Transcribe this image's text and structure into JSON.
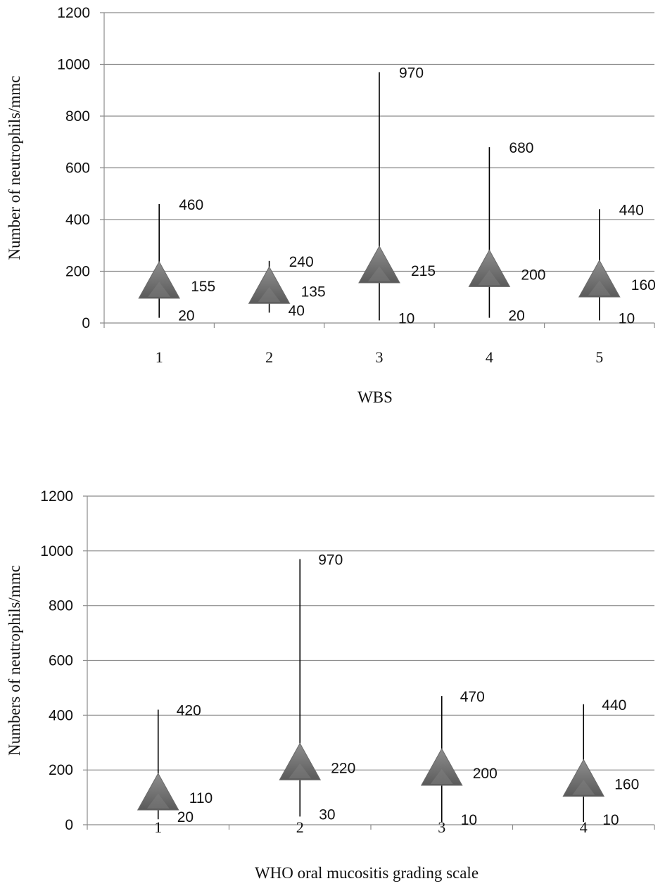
{
  "chart_data": [
    {
      "type": "stock",
      "xlabel": "WBS",
      "ylabel": "Number of neutrophils/mmc",
      "ylim": [
        0,
        1200
      ],
      "yticks": [
        0,
        200,
        400,
        600,
        800,
        1000,
        1200
      ],
      "ytick_labels": [
        "0",
        "200",
        "400",
        "600",
        "800",
        "1000",
        "1200"
      ],
      "grid": true,
      "categories": [
        "1",
        "2",
        "3",
        "4",
        "5"
      ],
      "series": [
        {
          "max": [
            460,
            240,
            970,
            680,
            440
          ],
          "median": [
            155,
            135,
            215,
            200,
            160
          ],
          "min": [
            20,
            40,
            10,
            20,
            10
          ]
        }
      ],
      "data_labels": {
        "max": [
          "460",
          "240",
          "970",
          "680",
          "440"
        ],
        "median": [
          "155",
          "135",
          "215",
          "200",
          "160"
        ],
        "min": [
          "20",
          "40",
          "10",
          "20",
          "10"
        ]
      },
      "marker": "triangle",
      "marker_color": "#7a7a7a"
    },
    {
      "type": "stock",
      "xlabel": "WHO oral mucositis grading scale",
      "ylabel": "Numbers of neutrophils/mmc",
      "ylim": [
        0,
        1200
      ],
      "yticks": [
        0,
        200,
        400,
        600,
        800,
        1000,
        1200
      ],
      "ytick_labels": [
        "0",
        "200",
        "400",
        "600",
        "800",
        "1000",
        "1200"
      ],
      "grid": true,
      "categories": [
        "1",
        "2",
        "3",
        "4"
      ],
      "series": [
        {
          "max": [
            420,
            970,
            470,
            440
          ],
          "median": [
            110,
            220,
            200,
            160
          ],
          "min": [
            20,
            30,
            10,
            10
          ]
        }
      ],
      "data_labels": {
        "max": [
          "420",
          "970",
          "470",
          "440"
        ],
        "median": [
          "110",
          "220",
          "200",
          "160"
        ],
        "min": [
          "20",
          "30",
          "10",
          "10"
        ]
      },
      "marker": "triangle",
      "marker_color": "#7a7a7a"
    }
  ]
}
